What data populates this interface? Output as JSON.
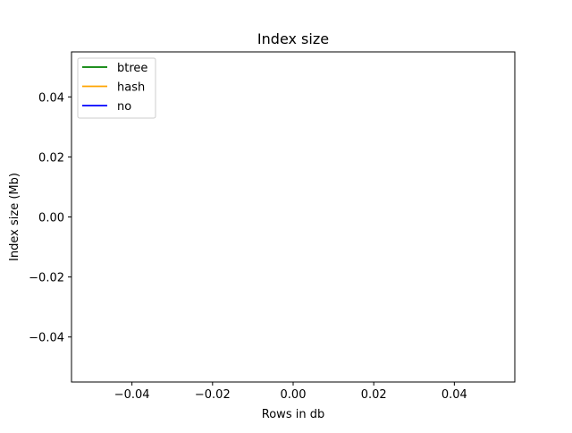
{
  "chart_data": {
    "type": "line",
    "title": "Index size",
    "xlabel": "Rows in db",
    "ylabel": "Index size (Mb)",
    "xlim": [
      -0.055,
      0.055
    ],
    "ylim": [
      -0.055,
      0.055
    ],
    "x_ticks": [
      -0.04,
      -0.02,
      0.0,
      0.02,
      0.04
    ],
    "x_tick_labels": [
      "−0.04",
      "−0.02",
      "0.00",
      "0.02",
      "0.04"
    ],
    "y_ticks": [
      0.04,
      0.02,
      0.0,
      -0.02,
      -0.04
    ],
    "y_tick_labels": [
      "0.04",
      "0.02",
      "0.00",
      "−0.02",
      "−0.04"
    ],
    "grid": false,
    "legend_position": "upper-left",
    "series": [
      {
        "name": "btree",
        "color": "#008000",
        "x": [],
        "y": []
      },
      {
        "name": "hash",
        "color": "#ffa500",
        "x": [],
        "y": []
      },
      {
        "name": "no",
        "color": "#0000ff",
        "x": [],
        "y": []
      }
    ]
  }
}
